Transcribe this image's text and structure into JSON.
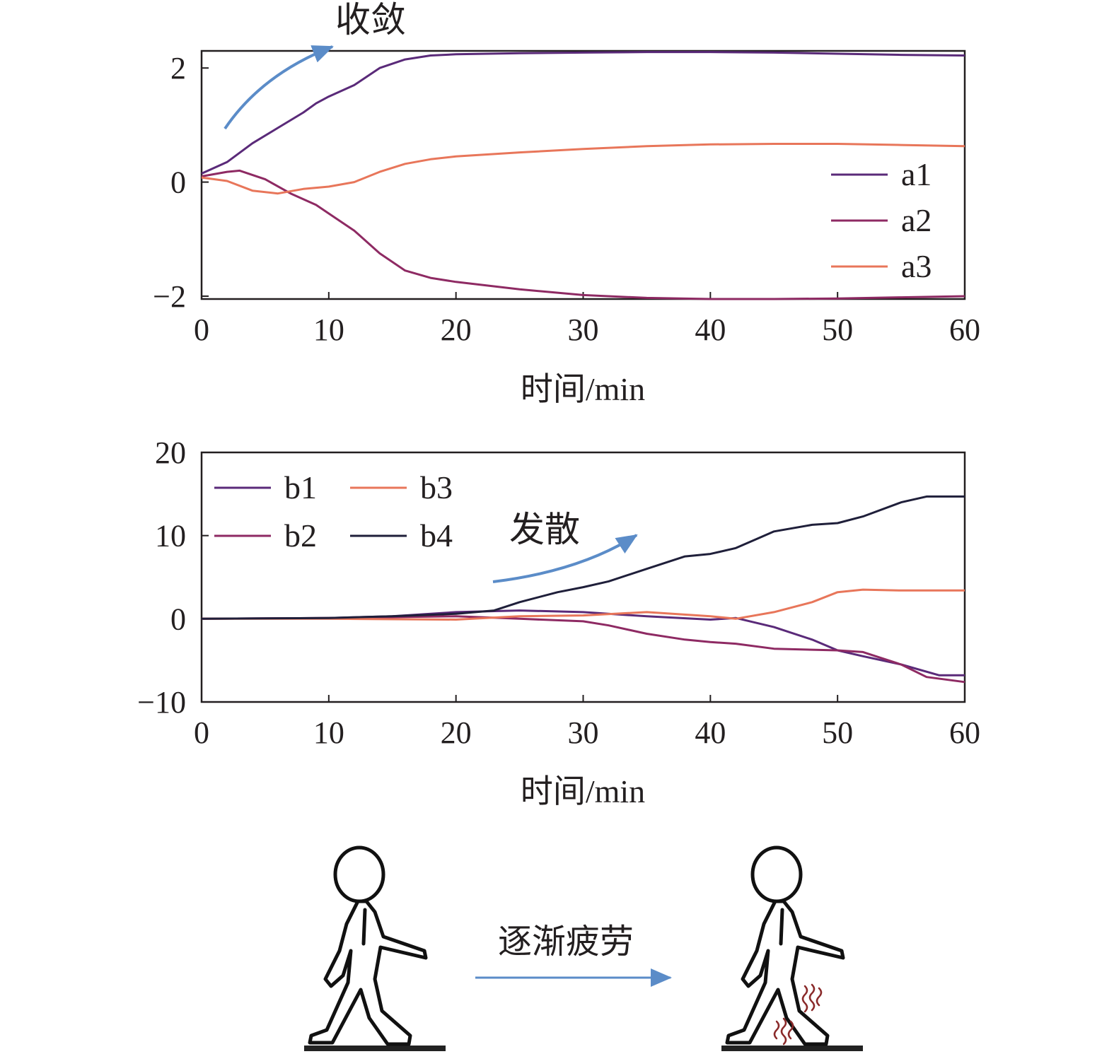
{
  "colors": {
    "a1": "#5a2a79",
    "a2": "#8e2a63",
    "a3": "#e8765a",
    "b1": "#5a2a79",
    "b2": "#8e2a63",
    "b3": "#e8765a",
    "b4": "#1f1f3a",
    "arrow": "#5b8cc8",
    "axis": "#231f20",
    "sweat": "#8a2a2a"
  },
  "chart_data": [
    {
      "type": "line",
      "xlabel": "时间/min",
      "ylabel": "",
      "xlim": [
        0,
        60
      ],
      "ylim": [
        -2.05,
        2.3
      ],
      "xticks": [
        0,
        10,
        20,
        30,
        40,
        50,
        60
      ],
      "yticks": [
        -2,
        0,
        2
      ],
      "ytick_labels": [
        "−2",
        "0",
        "2"
      ],
      "legend": "right",
      "annotation": "收敛",
      "series": [
        {
          "name": "a1",
          "x": [
            0,
            2,
            4,
            6,
            8,
            9,
            10,
            12,
            14,
            16,
            18,
            20,
            25,
            30,
            35,
            40,
            45,
            50,
            55,
            60
          ],
          "y": [
            0.15,
            0.35,
            0.68,
            0.95,
            1.22,
            1.38,
            1.5,
            1.7,
            2.0,
            2.15,
            2.22,
            2.24,
            2.26,
            2.27,
            2.28,
            2.28,
            2.27,
            2.25,
            2.23,
            2.22
          ]
        },
        {
          "name": "a2",
          "x": [
            0,
            2,
            3,
            5,
            7,
            9,
            10,
            12,
            14,
            16,
            18,
            20,
            25,
            30,
            35,
            40,
            45,
            50,
            55,
            60
          ],
          "y": [
            0.1,
            0.18,
            0.2,
            0.05,
            -0.2,
            -0.4,
            -0.55,
            -0.85,
            -1.25,
            -1.55,
            -1.68,
            -1.75,
            -1.88,
            -1.98,
            -2.03,
            -2.05,
            -2.05,
            -2.04,
            -2.02,
            -2.0
          ]
        },
        {
          "name": "a3",
          "x": [
            0,
            2,
            4,
            6,
            8,
            10,
            12,
            14,
            16,
            18,
            20,
            25,
            30,
            35,
            40,
            45,
            50,
            55,
            60
          ],
          "y": [
            0.08,
            0.02,
            -0.15,
            -0.2,
            -0.12,
            -0.08,
            0.0,
            0.18,
            0.32,
            0.4,
            0.45,
            0.52,
            0.58,
            0.63,
            0.66,
            0.67,
            0.67,
            0.65,
            0.63
          ]
        }
      ]
    },
    {
      "type": "line",
      "xlabel": "时间/min",
      "ylabel": "",
      "xlim": [
        0,
        60
      ],
      "ylim": [
        -10,
        20
      ],
      "xticks": [
        0,
        10,
        20,
        30,
        40,
        50,
        60
      ],
      "yticks": [
        -10,
        0,
        10,
        20
      ],
      "ytick_labels": [
        "−10",
        "0",
        "10",
        "20"
      ],
      "legend": "top-left",
      "annotation": "发散",
      "series": [
        {
          "name": "b1",
          "x": [
            0,
            10,
            15,
            20,
            25,
            30,
            35,
            40,
            42,
            45,
            48,
            50,
            52,
            55,
            58,
            60
          ],
          "y": [
            0,
            0.1,
            0.3,
            0.8,
            1.0,
            0.8,
            0.3,
            -0.1,
            0.1,
            -1.0,
            -2.5,
            -3.8,
            -4.5,
            -5.5,
            -6.8,
            -6.8
          ]
        },
        {
          "name": "b2",
          "x": [
            0,
            10,
            20,
            25,
            30,
            32,
            35,
            38,
            40,
            42,
            45,
            50,
            52,
            55,
            57,
            60
          ],
          "y": [
            0,
            0.1,
            0.3,
            0.0,
            -0.3,
            -0.8,
            -1.8,
            -2.5,
            -2.8,
            -3.0,
            -3.6,
            -3.8,
            -4.0,
            -5.5,
            -7.0,
            -7.6
          ]
        },
        {
          "name": "b3",
          "x": [
            0,
            10,
            20,
            25,
            30,
            35,
            40,
            42,
            45,
            48,
            50,
            52,
            55,
            60
          ],
          "y": [
            0,
            0.0,
            -0.1,
            0.3,
            0.4,
            0.8,
            0.3,
            0.0,
            0.8,
            2.0,
            3.2,
            3.5,
            3.4,
            3.4
          ]
        },
        {
          "name": "b4",
          "x": [
            0,
            10,
            15,
            20,
            23,
            25,
            28,
            30,
            32,
            35,
            38,
            40,
            42,
            45,
            48,
            50,
            52,
            55,
            57,
            60
          ],
          "y": [
            0,
            0.1,
            0.3,
            0.6,
            1.0,
            2.0,
            3.2,
            3.8,
            4.5,
            6.0,
            7.5,
            7.8,
            8.5,
            10.5,
            11.3,
            11.5,
            12.3,
            14.0,
            14.7,
            14.7
          ]
        }
      ]
    }
  ],
  "illustration": {
    "label": "逐渐疲劳"
  }
}
